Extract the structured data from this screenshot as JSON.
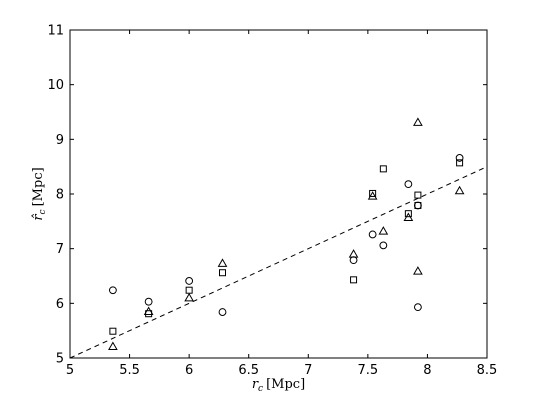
{
  "chart_data": {
    "type": "scatter",
    "title": "",
    "xlabel": {
      "symbol": "r",
      "subscript": "c",
      "unit": "[Mpc]"
    },
    "ylabel": {
      "symbol": "r̂",
      "subscript": "c",
      "unit": "[Mpc]"
    },
    "xlim": [
      5,
      8.5
    ],
    "ylim": [
      5,
      11
    ],
    "xticks": [
      5,
      5.5,
      6,
      6.5,
      7,
      7.5,
      8,
      8.5
    ],
    "xtick_labels": [
      "5",
      "5.5",
      "6",
      "6.5",
      "7",
      "7.5",
      "8",
      "8.5"
    ],
    "yticks": [
      5,
      6,
      7,
      8,
      9,
      10,
      11
    ],
    "ytick_labels": [
      "5",
      "6",
      "7",
      "8",
      "9",
      "10",
      "11"
    ],
    "grid": false,
    "reference_line": {
      "style": "dashed",
      "x": [
        5,
        8.5
      ],
      "y": [
        5,
        8.5
      ]
    },
    "series": [
      {
        "marker": "circle",
        "x": [
          5.36,
          5.66,
          6.0,
          6.28,
          7.38,
          7.54,
          7.63,
          7.84,
          7.92,
          7.92,
          8.27
        ],
        "y": [
          6.24,
          6.03,
          6.41,
          5.84,
          6.79,
          7.26,
          7.06,
          8.18,
          7.79,
          5.93,
          8.66
        ]
      },
      {
        "marker": "square",
        "x": [
          5.36,
          5.66,
          6.0,
          6.28,
          7.38,
          7.54,
          7.63,
          7.84,
          7.92,
          7.92,
          8.27
        ],
        "y": [
          5.49,
          5.81,
          6.24,
          6.56,
          6.43,
          8.01,
          8.46,
          7.64,
          7.98,
          7.79,
          8.57
        ]
      },
      {
        "marker": "triangle",
        "x": [
          5.36,
          5.66,
          6.0,
          6.28,
          7.38,
          7.54,
          7.63,
          7.84,
          7.92,
          7.92,
          8.27
        ],
        "y": [
          5.21,
          5.85,
          6.1,
          6.73,
          6.9,
          7.96,
          7.32,
          7.57,
          9.31,
          6.59,
          8.06
        ]
      }
    ]
  }
}
